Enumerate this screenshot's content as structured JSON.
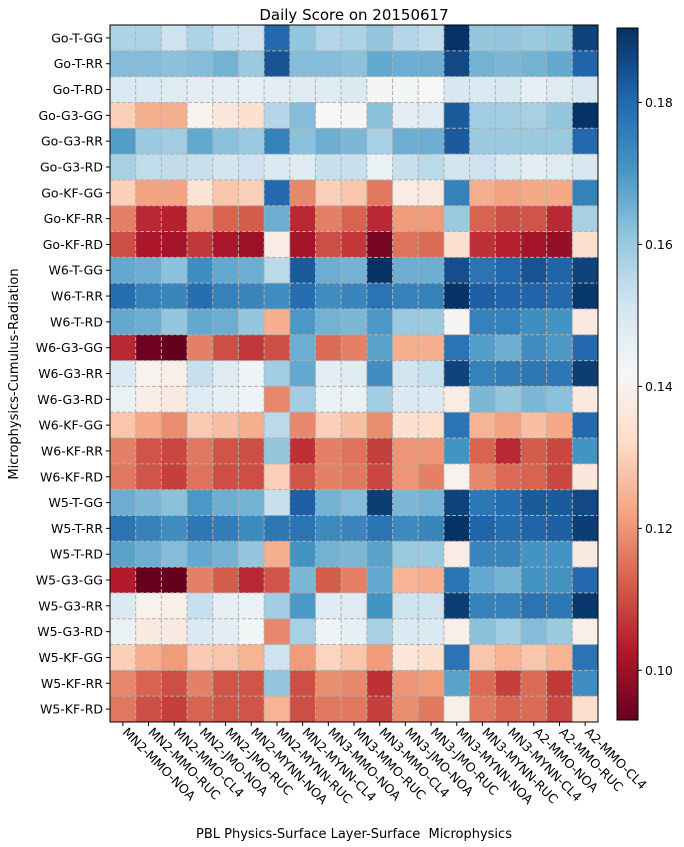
{
  "chart_data": {
    "type": "heatmap",
    "title": "Daily Score on 20150617",
    "xlabel": "PBL Physics-Surface Layer-Surface  Microphysics",
    "ylabel": "Microphysics-Cumulus-Radiation",
    "grid": true,
    "colormap": "RdBu_r",
    "colorbar": {
      "vmin": 0.093,
      "vmax": 0.1905,
      "ticks": [
        0.1,
        0.12,
        0.14,
        0.16,
        0.18
      ],
      "tick_labels": [
        "0.10",
        "0.12",
        "0.14",
        "0.16",
        "0.18"
      ],
      "placement": "right"
    },
    "x_categories": [
      "MN2-MMO-NOA",
      "MN2-MMO-RUC",
      "MN2-MMO-CL4",
      "MN2-JMO-NOA",
      "MN2-JMO-RUC",
      "MN2-MYNN-NOA",
      "MN2-MYNN-RUC",
      "MN2-MYNN-CL4",
      "MN3-MMO-NOA",
      "MN3-MMO-RUC",
      "MN3-MMO-CL4",
      "MN3-JMO-NOA",
      "MN3-JMO-RUC",
      "MN3-MYNN-NOA",
      "MN3-MYNN-RUC",
      "MN3-MYNN-CL4",
      "A2-MMO-NOA",
      "A2-MMO-RUC",
      "A2-MMO-CL4"
    ],
    "y_categories": [
      "Go-T-GG",
      "Go-T-RR",
      "Go-T-RD",
      "Go-G3-GG",
      "Go-G3-RR",
      "Go-G3-RD",
      "Go-KF-GG",
      "Go-KF-RR",
      "Go-KF-RD",
      "W6-T-GG",
      "W6-T-RR",
      "W6-T-RD",
      "W6-G3-GG",
      "W6-G3-RR",
      "W6-G3-RD",
      "W6-KF-GG",
      "W6-KF-RR",
      "W6-KF-RD",
      "W5-T-GG",
      "W5-T-RR",
      "W5-T-RD",
      "W5-G3-GG",
      "W5-G3-RR",
      "W5-G3-RD",
      "W5-KF-GG",
      "W5-KF-RR",
      "W5-KF-RD"
    ],
    "values": [
      [
        0.157,
        0.157,
        0.152,
        0.157,
        0.153,
        0.152,
        0.18,
        0.161,
        0.156,
        0.157,
        0.161,
        0.156,
        0.154,
        0.19,
        0.161,
        0.161,
        0.16,
        0.161,
        0.187
      ],
      [
        0.163,
        0.163,
        0.162,
        0.163,
        0.165,
        0.16,
        0.184,
        0.163,
        0.163,
        0.162,
        0.167,
        0.166,
        0.166,
        0.186,
        0.165,
        0.164,
        0.165,
        0.167,
        0.181
      ],
      [
        0.149,
        0.149,
        0.148,
        0.147,
        0.147,
        0.146,
        0.147,
        0.148,
        0.148,
        0.149,
        0.141,
        0.143,
        0.142,
        0.15,
        0.149,
        0.15,
        0.146,
        0.148,
        0.15
      ],
      [
        0.13,
        0.124,
        0.124,
        0.14,
        0.136,
        0.134,
        0.156,
        0.163,
        0.142,
        0.141,
        0.162,
        0.147,
        0.148,
        0.183,
        0.159,
        0.159,
        0.158,
        0.161,
        0.19
      ],
      [
        0.169,
        0.16,
        0.159,
        0.167,
        0.162,
        0.16,
        0.175,
        0.162,
        0.166,
        0.164,
        0.158,
        0.166,
        0.166,
        0.183,
        0.16,
        0.16,
        0.16,
        0.16,
        0.18
      ],
      [
        0.158,
        0.154,
        0.154,
        0.153,
        0.151,
        0.152,
        0.149,
        0.148,
        0.153,
        0.153,
        0.145,
        0.153,
        0.155,
        0.151,
        0.152,
        0.15,
        0.147,
        0.148,
        0.15
      ],
      [
        0.13,
        0.122,
        0.122,
        0.135,
        0.128,
        0.13,
        0.18,
        0.118,
        0.13,
        0.128,
        0.116,
        0.138,
        0.137,
        0.175,
        0.124,
        0.122,
        0.123,
        0.123,
        0.175
      ],
      [
        0.117,
        0.105,
        0.104,
        0.12,
        0.113,
        0.112,
        0.166,
        0.105,
        0.117,
        0.113,
        0.105,
        0.121,
        0.121,
        0.16,
        0.113,
        0.11,
        0.111,
        0.105,
        0.158
      ],
      [
        0.11,
        0.102,
        0.101,
        0.107,
        0.102,
        0.1,
        0.138,
        0.101,
        0.11,
        0.107,
        0.095,
        0.115,
        0.114,
        0.134,
        0.106,
        0.104,
        0.101,
        0.099,
        0.133
      ],
      [
        0.167,
        0.166,
        0.162,
        0.172,
        0.167,
        0.166,
        0.155,
        0.183,
        0.166,
        0.165,
        0.19,
        0.166,
        0.166,
        0.185,
        0.178,
        0.18,
        0.184,
        0.181,
        0.187
      ],
      [
        0.179,
        0.175,
        0.174,
        0.179,
        0.175,
        0.174,
        0.172,
        0.179,
        0.172,
        0.174,
        0.178,
        0.175,
        0.175,
        0.19,
        0.182,
        0.181,
        0.181,
        0.18,
        0.189
      ],
      [
        0.167,
        0.166,
        0.161,
        0.167,
        0.166,
        0.161,
        0.124,
        0.17,
        0.165,
        0.164,
        0.17,
        0.16,
        0.16,
        0.141,
        0.175,
        0.175,
        0.172,
        0.171,
        0.137
      ],
      [
        0.105,
        0.094,
        0.093,
        0.117,
        0.11,
        0.107,
        0.11,
        0.166,
        0.114,
        0.117,
        0.168,
        0.124,
        0.124,
        0.178,
        0.169,
        0.166,
        0.172,
        0.17,
        0.18
      ],
      [
        0.149,
        0.14,
        0.139,
        0.153,
        0.148,
        0.144,
        0.159,
        0.167,
        0.147,
        0.148,
        0.172,
        0.151,
        0.153,
        0.187,
        0.175,
        0.176,
        0.177,
        0.177,
        0.188
      ],
      [
        0.145,
        0.138,
        0.137,
        0.148,
        0.146,
        0.144,
        0.118,
        0.159,
        0.145,
        0.145,
        0.159,
        0.149,
        0.149,
        0.138,
        0.164,
        0.161,
        0.164,
        0.162,
        0.137
      ],
      [
        0.128,
        0.123,
        0.119,
        0.129,
        0.127,
        0.124,
        0.155,
        0.118,
        0.13,
        0.127,
        0.119,
        0.134,
        0.133,
        0.178,
        0.125,
        0.122,
        0.127,
        0.123,
        0.18
      ],
      [
        0.117,
        0.111,
        0.109,
        0.116,
        0.111,
        0.11,
        0.161,
        0.106,
        0.117,
        0.115,
        0.108,
        0.12,
        0.12,
        0.171,
        0.113,
        0.105,
        0.112,
        0.109,
        0.171
      ],
      [
        0.116,
        0.111,
        0.108,
        0.115,
        0.11,
        0.11,
        0.13,
        0.111,
        0.117,
        0.116,
        0.109,
        0.12,
        0.117,
        0.14,
        0.118,
        0.114,
        0.113,
        0.109,
        0.136
      ],
      [
        0.166,
        0.164,
        0.162,
        0.17,
        0.166,
        0.165,
        0.153,
        0.182,
        0.165,
        0.163,
        0.188,
        0.164,
        0.165,
        0.187,
        0.177,
        0.179,
        0.183,
        0.183,
        0.186
      ],
      [
        0.178,
        0.175,
        0.172,
        0.177,
        0.176,
        0.173,
        0.177,
        0.178,
        0.173,
        0.174,
        0.178,
        0.173,
        0.174,
        0.19,
        0.181,
        0.179,
        0.181,
        0.182,
        0.188
      ],
      [
        0.168,
        0.166,
        0.163,
        0.167,
        0.165,
        0.161,
        0.124,
        0.171,
        0.165,
        0.164,
        0.168,
        0.16,
        0.16,
        0.138,
        0.174,
        0.174,
        0.171,
        0.171,
        0.137
      ],
      [
        0.103,
        0.093,
        0.093,
        0.117,
        0.112,
        0.105,
        0.111,
        0.164,
        0.112,
        0.117,
        0.167,
        0.125,
        0.124,
        0.178,
        0.167,
        0.165,
        0.171,
        0.171,
        0.18
      ],
      [
        0.149,
        0.14,
        0.139,
        0.153,
        0.146,
        0.145,
        0.159,
        0.17,
        0.148,
        0.148,
        0.171,
        0.152,
        0.152,
        0.188,
        0.175,
        0.175,
        0.178,
        0.177,
        0.189
      ],
      [
        0.145,
        0.137,
        0.137,
        0.149,
        0.147,
        0.143,
        0.118,
        0.158,
        0.144,
        0.146,
        0.158,
        0.149,
        0.149,
        0.139,
        0.162,
        0.159,
        0.163,
        0.16,
        0.139
      ],
      [
        0.13,
        0.124,
        0.121,
        0.129,
        0.128,
        0.125,
        0.152,
        0.121,
        0.131,
        0.128,
        0.121,
        0.136,
        0.134,
        0.178,
        0.128,
        0.125,
        0.128,
        0.125,
        0.178
      ],
      [
        0.118,
        0.113,
        0.11,
        0.117,
        0.111,
        0.111,
        0.161,
        0.11,
        0.119,
        0.118,
        0.106,
        0.12,
        0.121,
        0.168,
        0.114,
        0.108,
        0.114,
        0.107,
        0.172
      ],
      [
        0.116,
        0.11,
        0.108,
        0.113,
        0.111,
        0.111,
        0.125,
        0.11,
        0.116,
        0.116,
        0.108,
        0.119,
        0.116,
        0.139,
        0.116,
        0.113,
        0.114,
        0.109,
        0.133
      ]
    ]
  }
}
